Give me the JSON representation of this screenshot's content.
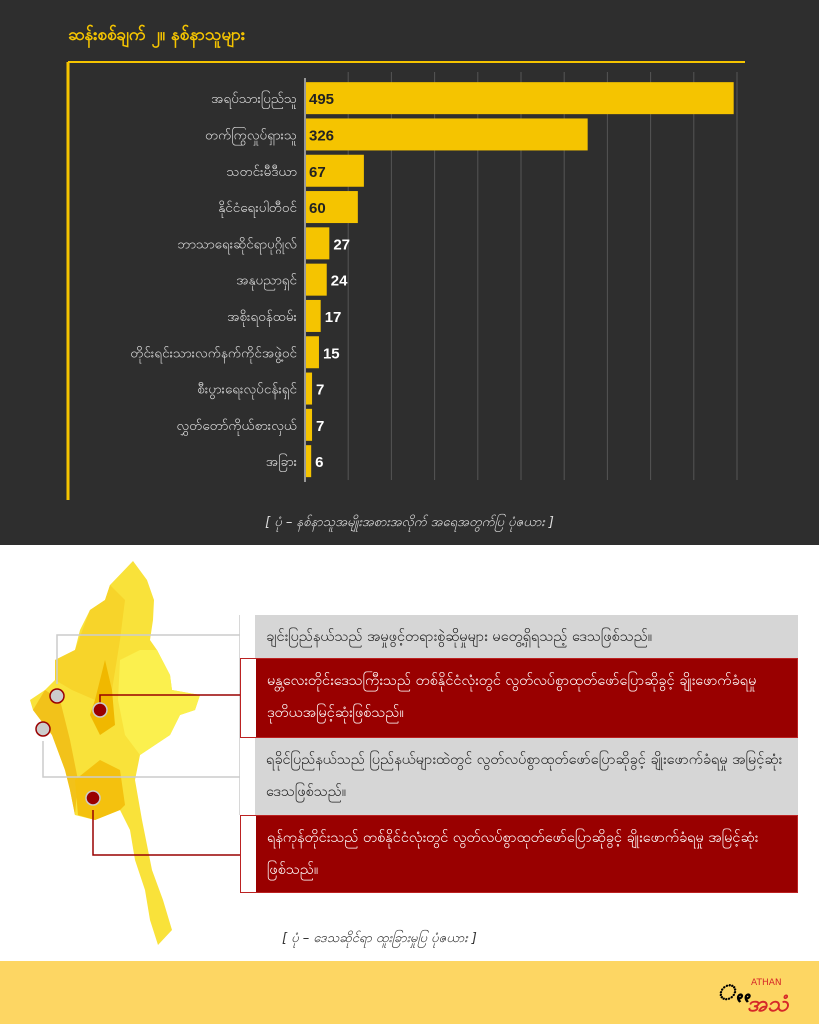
{
  "title": "ဆန်းစစ်ချက် ၂။ နစ်နာသူများ",
  "caption_chart": "[ ပုံ – နစ်နာသူအမျိုးအစားအလိုက် အရေအတွက်ပြ ပုံဇယား ]",
  "caption_map": "[ ပုံ – ဒေသဆိုင်ရာ ထူးခြားမှုပြ ပုံဇယား ]",
  "chart_data": {
    "type": "bar",
    "orientation": "horizontal",
    "categories": [
      "အရပ်သားပြည်သူ",
      "တက်ကြွလှုပ်ရှားသူ",
      "သတင်းမီဒီယာ",
      "နိုင်ငံရေးပါတီဝင်",
      "ဘာသာရေးဆိုင်ရာပုဂ္ဂိုလ်",
      "အနုပညာရှင်",
      "အစိုးရဝန်ထမ်း",
      "တိုင်းရင်းသားလက်နက်ကိုင်အဖွဲ့ဝင်",
      "စီးပွားရေးလုပ်ငန်းရှင်",
      "လွှတ်တော်ကိုယ်စားလှယ်",
      "အခြား"
    ],
    "values": [
      495,
      326,
      67,
      60,
      27,
      24,
      17,
      15,
      7,
      7,
      6
    ],
    "xlim": [
      0,
      500
    ],
    "grid": true,
    "bar_color": "#f5c400"
  },
  "notes": [
    {
      "text": "ချင်းပြည်နယ်သည် အမှုဖွင့်တရားစွဲဆိုမှုများ မတွေ့ရှိရသည့် ဒေသဖြစ်သည်။",
      "style": "grey"
    },
    {
      "text": "မန္တလေးတိုင်းဒေသကြီးသည် တစ်နိုင်ငံလုံးတွင် လွတ်လပ်စွာထုတ်ဖော်ပြောဆိုခွင့် ချိုးဖောက်ခံရမှု ဒုတိယအမြင့်ဆုံးဖြစ်သည်။",
      "style": "red"
    },
    {
      "text": "ရခိုင်ပြည်နယ်သည် ပြည်နယ်များထဲတွင် လွတ်လပ်စွာထုတ်ဖော်ပြောဆိုခွင့် ချိုးဖောက်ခံရမှု အမြင့်ဆုံးဒေသဖြစ်သည်။",
      "style": "grey"
    },
    {
      "text": "ရန်ကုန်တိုင်းသည် တစ်နိုင်ငံလုံးတွင် လွတ်လပ်စွာထုတ်ဖော်ပြောဆိုခွင့် ချိုးဖောက်ခံရမှု အမြင့်ဆုံးဖြစ်သည်။",
      "style": "red"
    }
  ],
  "logo": {
    "text": "Athan",
    "colors": [
      "#000000",
      "#d62828"
    ]
  },
  "colors": {
    "panel": "#2e2e2e",
    "gold": "#f5c400",
    "red": "#990000",
    "grey": "#d6d6d6",
    "footer": "#fdd663"
  }
}
